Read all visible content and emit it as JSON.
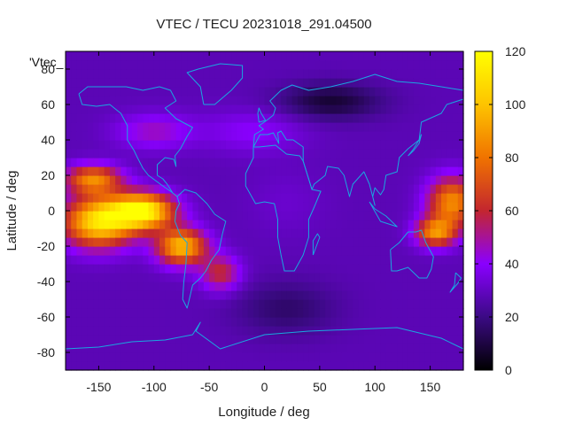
{
  "chart_data": {
    "type": "heatmap",
    "title": "VTEC / TECU 20231018_291.04500",
    "xlabel": "Longitude / deg",
    "ylabel": "Latitude / deg",
    "series_key": "'Vtec_",
    "xlim": [
      -180,
      180
    ],
    "ylim": [
      -90,
      90
    ],
    "x_ticks": [
      -150,
      -100,
      -50,
      0,
      50,
      100,
      150
    ],
    "y_ticks": [
      -80,
      -60,
      -40,
      -20,
      0,
      20,
      40,
      60,
      80
    ],
    "colorbar": {
      "range": [
        0,
        120
      ],
      "ticks": [
        0,
        20,
        40,
        60,
        80,
        100,
        120
      ],
      "palette": [
        "#000000",
        "#3b0a84",
        "#8a00ff",
        "#c3262f",
        "#f07300",
        "#fec400",
        "#ffff00"
      ]
    },
    "background_level": 28,
    "features": [
      {
        "lon": -110,
        "lat": 0,
        "sigma_lon": 28,
        "sigma_lat": 10,
        "value": 88
      },
      {
        "lon": -150,
        "lat": -6,
        "sigma_lon": 32,
        "sigma_lat": 14,
        "value": 80
      },
      {
        "lon": -75,
        "lat": -20,
        "sigma_lon": 22,
        "sigma_lat": 10,
        "value": 70
      },
      {
        "lon": -40,
        "lat": -35,
        "sigma_lon": 18,
        "sigma_lat": 10,
        "value": 32
      },
      {
        "lon": -155,
        "lat": 18,
        "sigma_lon": 25,
        "sigma_lat": 8,
        "value": 55
      },
      {
        "lon": 170,
        "lat": 5,
        "sigma_lon": 22,
        "sigma_lat": 14,
        "value": 58
      },
      {
        "lon": 155,
        "lat": -12,
        "sigma_lon": 18,
        "sigma_lat": 8,
        "value": 55
      },
      {
        "lon": -100,
        "lat": 45,
        "sigma_lon": 35,
        "sigma_lat": 10,
        "value": 18
      },
      {
        "lon": -10,
        "lat": 45,
        "sigma_lon": 45,
        "sigma_lat": 12,
        "value": 12
      },
      {
        "lon": 60,
        "lat": 62,
        "sigma_lon": 45,
        "sigma_lat": 10,
        "value": -20
      },
      {
        "lon": 20,
        "lat": -55,
        "sigma_lon": 45,
        "sigma_lat": 15,
        "value": -12
      },
      {
        "lon": 20,
        "lat": 5,
        "sigma_lon": 35,
        "sigma_lat": 18,
        "value": 4
      }
    ]
  }
}
